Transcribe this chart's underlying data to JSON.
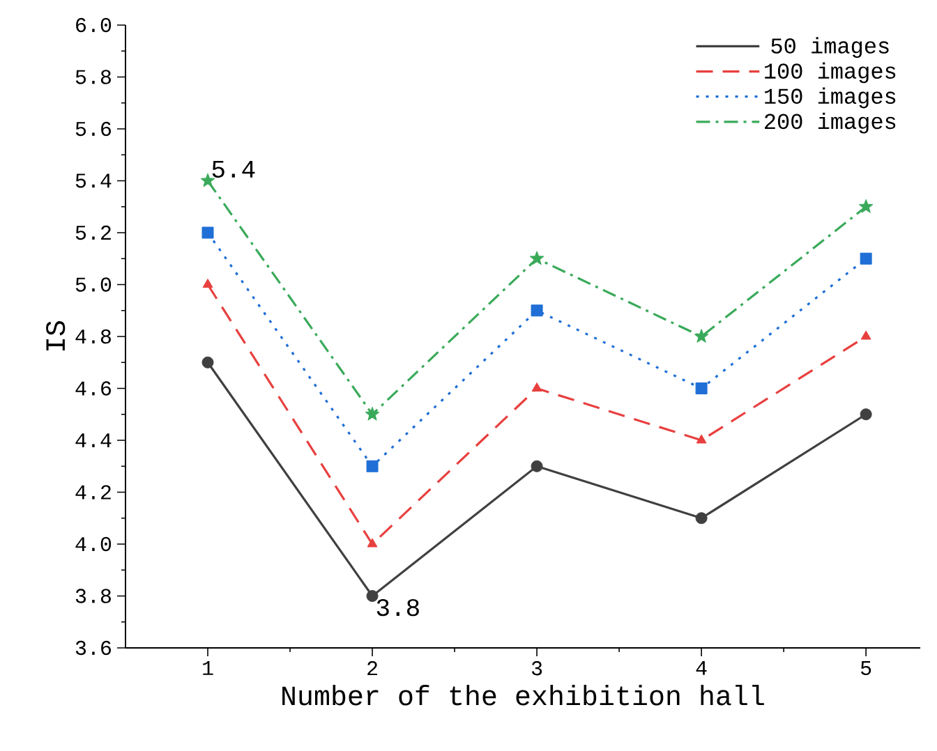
{
  "chart_data": {
    "type": "line",
    "xlabel": "Number of the exhibition hall",
    "ylabel": "IS",
    "x": [
      1,
      2,
      3,
      4,
      5
    ],
    "xlim": [
      0.5,
      5.33
    ],
    "xticks": [
      1,
      2,
      3,
      4,
      5
    ],
    "ylim": [
      3.6,
      6.0
    ],
    "yticks": [
      {
        "value": 3.6,
        "label": "3.6"
      },
      {
        "value": 3.8,
        "label": "3.8"
      },
      {
        "value": 4.0,
        "label": "4.0"
      },
      {
        "value": 4.2,
        "label": "4.2"
      },
      {
        "value": 4.4,
        "label": "4.4"
      },
      {
        "value": 4.6,
        "label": "4.6"
      },
      {
        "value": 4.8,
        "label": "4.8"
      },
      {
        "value": 5.0,
        "label": "5.0"
      },
      {
        "value": 5.2,
        "label": "5.2"
      },
      {
        "value": 5.4,
        "label": "5.4"
      },
      {
        "value": 5.6,
        "label": "5.6"
      },
      {
        "value": 5.8,
        "label": "5.8"
      },
      {
        "value": 6.0,
        "label": "6.0"
      }
    ],
    "series": [
      {
        "name": "50 images",
        "color": "#404040",
        "marker": "circle",
        "line_style": "solid",
        "values": [
          4.7,
          3.8,
          4.3,
          4.1,
          4.5
        ]
      },
      {
        "name": "100 images",
        "color": "#e8403f",
        "marker": "triangle",
        "line_style": "dashed",
        "values": [
          5.0,
          4.0,
          4.6,
          4.4,
          4.8
        ]
      },
      {
        "name": "150 images",
        "color": "#1f6fd6",
        "marker": "square",
        "line_style": "dotted",
        "values": [
          5.2,
          4.3,
          4.9,
          4.6,
          5.1
        ]
      },
      {
        "name": "200 images",
        "color": "#3aaa5a",
        "marker": "star",
        "line_style": "dashdot",
        "values": [
          5.4,
          4.5,
          5.1,
          4.8,
          5.3
        ]
      }
    ],
    "annotations": [
      {
        "text": "5.4",
        "x": 1,
        "y": 5.4
      },
      {
        "text": "3.8",
        "x": 2,
        "y": 3.8
      }
    ],
    "legend": "top right",
    "grid": false
  }
}
